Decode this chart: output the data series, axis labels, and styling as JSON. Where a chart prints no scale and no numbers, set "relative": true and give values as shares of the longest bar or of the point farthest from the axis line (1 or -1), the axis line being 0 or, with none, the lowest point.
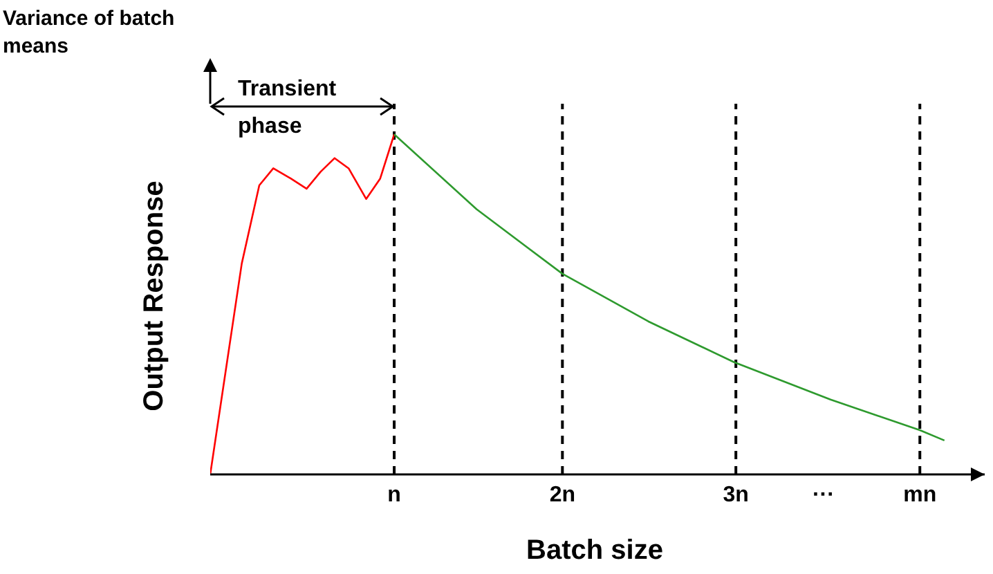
{
  "chart_data": {
    "type": "line",
    "relative": true,
    "xlabel": "Batch size",
    "ylabel": "Output Response",
    "annotations": [
      "Variance of batch means",
      "Transient phase"
    ],
    "xlim": [
      0,
      4.42
    ],
    "xticks": [
      {
        "value": 1.05,
        "label": "n"
      },
      {
        "value": 2.01,
        "label": "2n"
      },
      {
        "value": 3.0,
        "label": "3n"
      },
      {
        "value": 3.5,
        "label": "···"
      },
      {
        "value": 4.05,
        "label": "mn"
      }
    ],
    "ref_lines": [
      {
        "axis": "x",
        "value": 1.05,
        "line_style": "dashed",
        "color": "#000000"
      },
      {
        "axis": "x",
        "value": 2.01,
        "line_style": "dashed",
        "color": "#000000"
      },
      {
        "axis": "x",
        "value": 3.0,
        "line_style": "dashed",
        "color": "#000000"
      },
      {
        "axis": "x",
        "value": 4.05,
        "line_style": "dashed",
        "color": "#000000"
      }
    ],
    "series": [
      {
        "color": "#ff0000",
        "x": [
          0,
          0.18,
          0.28,
          0.36,
          0.46,
          0.55,
          0.63,
          0.71,
          0.79,
          0.89,
          0.97,
          1.05
        ],
        "values": [
          0,
          0.62,
          0.85,
          0.9,
          0.87,
          0.84,
          0.89,
          0.93,
          0.9,
          0.81,
          0.87,
          1.0
        ]
      },
      {
        "color": "#2e9a2e",
        "x": [
          1.05,
          1.52,
          2.01,
          2.5,
          2.99,
          3.54,
          4.05,
          4.19
        ],
        "values": [
          1.0,
          0.78,
          0.59,
          0.45,
          0.33,
          0.22,
          0.13,
          0.1
        ]
      }
    ],
    "grid": false,
    "legend": false,
    "marker": "none",
    "line_style": "solid"
  }
}
